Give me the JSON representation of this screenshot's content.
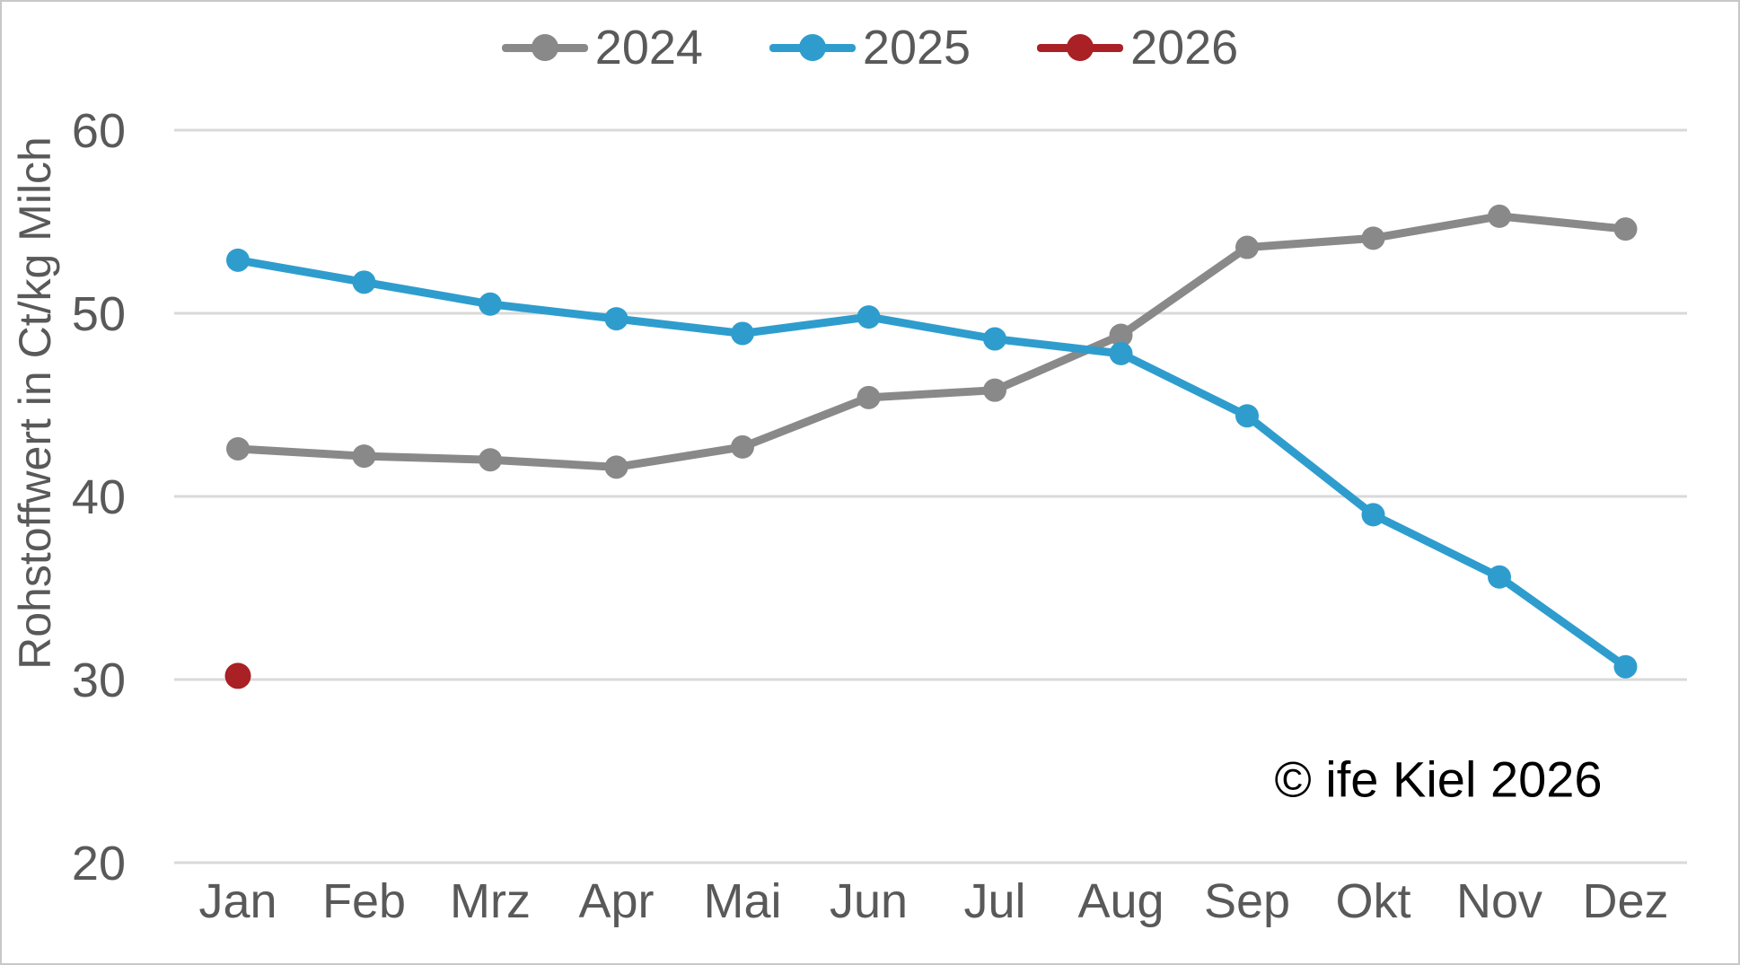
{
  "chart_data": {
    "type": "line",
    "title": "",
    "ylabel": "Rohstoffwert in Ct/kg Milch",
    "xlabel": "",
    "categories": [
      "Jan",
      "Feb",
      "Mrz",
      "Apr",
      "Mai",
      "Jun",
      "Jul",
      "Aug",
      "Sep",
      "Okt",
      "Nov",
      "Dez"
    ],
    "yticks": [
      60,
      50,
      40,
      30,
      20
    ],
    "ylim": [
      20,
      60
    ],
    "grid": "horizontal",
    "legend_position": "top",
    "annotation": "© ife Kiel 2026",
    "series": [
      {
        "name": "2024",
        "color": "#898989",
        "values": [
          42.6,
          42.2,
          42.0,
          41.6,
          42.7,
          45.4,
          45.8,
          48.8,
          53.6,
          54.1,
          55.3,
          54.6
        ]
      },
      {
        "name": "2025",
        "color": "#2e9dce",
        "values": [
          52.9,
          51.7,
          50.5,
          49.7,
          48.9,
          49.8,
          48.6,
          47.8,
          44.4,
          39.0,
          35.6,
          30.7
        ]
      },
      {
        "name": "2026",
        "color": "#a92025",
        "values": [
          30.2
        ]
      }
    ]
  },
  "colors": {
    "grid": "#d9d9d9",
    "axis_text": "#595959",
    "annotation_text": "#000000",
    "background": "#ffffff",
    "frame_border": "#c8c8c8"
  }
}
